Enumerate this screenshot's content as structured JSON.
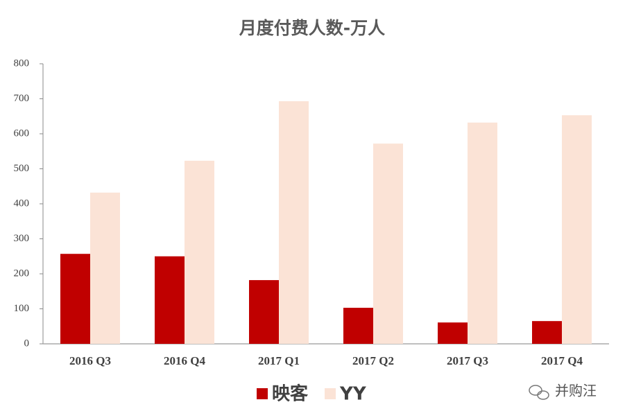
{
  "chart_data": {
    "type": "bar",
    "title": "月度付费人数-万人",
    "categories": [
      "2016 Q3",
      "2016 Q4",
      "2017 Q1",
      "2017 Q2",
      "2017 Q3",
      "2017 Q4"
    ],
    "series": [
      {
        "name": "映客",
        "color": "#c00000",
        "values": [
          257,
          250,
          182,
          103,
          61,
          65
        ]
      },
      {
        "name": "YY",
        "color": "#fbe3d6",
        "values": [
          432,
          523,
          693,
          572,
          632,
          653
        ]
      }
    ],
    "ylim": [
      0,
      800
    ],
    "yticks": [
      0,
      100,
      200,
      300,
      400,
      500,
      600,
      700,
      800
    ],
    "grid": false,
    "legend": "bottom"
  },
  "watermark": "并购汪"
}
